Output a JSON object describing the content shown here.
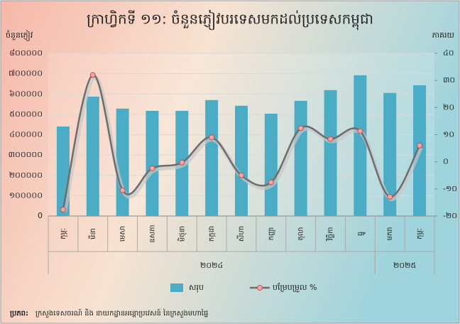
{
  "chart_data": {
    "type": "bar-line",
    "title": "ក្រាហ្វិកទី ១១: ចំនួនភ្ញៀវបរទេសមកដល់ប្រទេសកម្ពុជា",
    "y_axis_label": "ចំនួនភ្ញៀវ",
    "y2_axis_label": "ភាគរយ",
    "categories": [
      "កុម្ភៈ",
      "មីនា",
      "មេសា",
      "ឧសភា",
      "មិថុនា",
      "កក្កដា",
      "សីហា",
      "កញ្ញា",
      "តុលា",
      "វិច្ឆិកា",
      "ធ្នូ",
      "មករា",
      "កុម្ភៈ"
    ],
    "groups": [
      {
        "label": "២០២៤",
        "count": 11
      },
      {
        "label": "២០២៥",
        "count": 2
      }
    ],
    "series": [
      {
        "name": "សរុប",
        "type": "bar",
        "color": "#4bacc6",
        "values": [
          440000,
          587000,
          528000,
          517000,
          517000,
          570000,
          542000,
          503000,
          566000,
          619000,
          692000,
          605000,
          643000
        ]
      },
      {
        "name": "បម្រែបម្រួល %",
        "type": "line",
        "axis": "y2",
        "color": "#6d6d6d",
        "marker_color": "#f4a6a6",
        "values": [
          -17.6,
          32,
          -10.5,
          -2.4,
          -0.3,
          9,
          -5,
          -7.6,
          12.4,
          8.4,
          11.3,
          -12.9,
          6
        ]
      }
    ],
    "ylim": [
      0,
      800000
    ],
    "yticks": [
      {
        "value": 0,
        "label": "0"
      },
      {
        "value": 100000,
        "label": "១០០០០០"
      },
      {
        "value": 200000,
        "label": "២០០០០០"
      },
      {
        "value": 300000,
        "label": "៣០០០០០"
      },
      {
        "value": 400000,
        "label": "៤០០០០០"
      },
      {
        "value": 500000,
        "label": "៥០០០០០"
      },
      {
        "value": 600000,
        "label": "៦០០០០០"
      },
      {
        "value": 700000,
        "label": "៧០០០០០"
      },
      {
        "value": 800000,
        "label": "៨០០០០០"
      }
    ],
    "y2lim": [
      -20,
      40
    ],
    "y2ticks": [
      {
        "value": -20,
        "label": "-២០"
      },
      {
        "value": -10,
        "label": "-១០"
      },
      {
        "value": 0,
        "label": "០"
      },
      {
        "value": 10,
        "label": "១០"
      },
      {
        "value": 20,
        "label": "២០"
      },
      {
        "value": 30,
        "label": "៣០"
      },
      {
        "value": 40,
        "label": "៤០"
      }
    ],
    "grid": true,
    "legend": "bottom",
    "source_label": "ប្រភព:",
    "source": "ក្រសួងទេសចរណ៍ និង នាយកដ្ឋានអន្តោប្រវេសន៍ នៃក្រសួងមហាផ្ទៃ"
  }
}
